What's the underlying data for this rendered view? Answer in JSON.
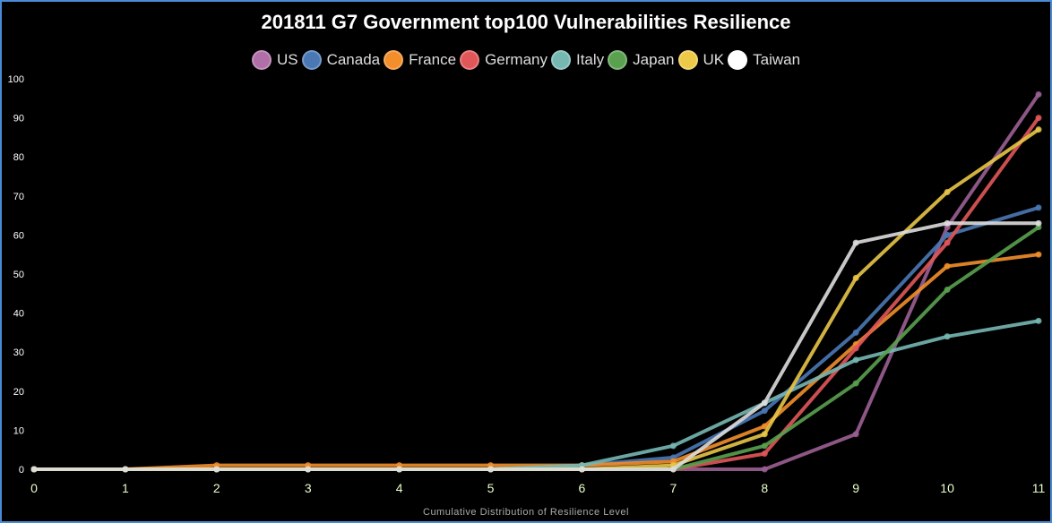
{
  "chart_data": {
    "type": "line",
    "title": "201811 G7 Government top100 Vulnerabilities Resilience",
    "xlabel": "Cumulative Distribution of Resilience Level",
    "ylabel": "",
    "x": [
      0,
      1,
      2,
      3,
      4,
      5,
      6,
      7,
      8,
      9,
      10,
      11
    ],
    "xlim": [
      0,
      11
    ],
    "ylim": [
      0,
      100
    ],
    "yticks": [
      0,
      10,
      20,
      30,
      40,
      50,
      60,
      70,
      80,
      90,
      100
    ],
    "grid": false,
    "legend_position": "top",
    "series": [
      {
        "name": "US",
        "color": "#9b5f93",
        "swatch": "#b06fa6",
        "values": [
          0,
          0,
          0,
          0,
          0,
          0,
          0,
          0,
          0,
          9,
          62,
          96
        ]
      },
      {
        "name": "Canada",
        "color": "#4a78b4",
        "swatch": "#4a78b4",
        "values": [
          0,
          0,
          0,
          0,
          0,
          0,
          1,
          3,
          15,
          35,
          60,
          67
        ]
      },
      {
        "name": "France",
        "color": "#f28e2b",
        "swatch": "#f28e2b",
        "values": [
          0,
          0,
          1,
          1,
          1,
          1,
          1,
          2,
          11,
          32,
          52,
          55
        ]
      },
      {
        "name": "Germany",
        "color": "#e15759",
        "swatch": "#e15759",
        "values": [
          0,
          0,
          0,
          0,
          0,
          0,
          0,
          0,
          4,
          31,
          58,
          90
        ]
      },
      {
        "name": "Italy",
        "color": "#76b7b2",
        "swatch": "#76b7b2",
        "values": [
          0,
          0,
          0,
          0,
          0,
          0,
          1,
          6,
          17,
          28,
          34,
          38
        ]
      },
      {
        "name": "Japan",
        "color": "#59a14f",
        "swatch": "#59a14f",
        "values": [
          0,
          0,
          0,
          0,
          0,
          0,
          0,
          0,
          6,
          22,
          46,
          62
        ]
      },
      {
        "name": "UK",
        "color": "#e8c547",
        "swatch": "#edc948",
        "values": [
          0,
          0,
          0,
          0,
          0,
          0,
          0,
          1,
          9,
          49,
          71,
          87
        ]
      },
      {
        "name": "Taiwan",
        "color": "#dddddd",
        "swatch": "#ffffff",
        "values": [
          0,
          0,
          0,
          0,
          0,
          0,
          0,
          0,
          17,
          58,
          63,
          63
        ]
      }
    ]
  }
}
